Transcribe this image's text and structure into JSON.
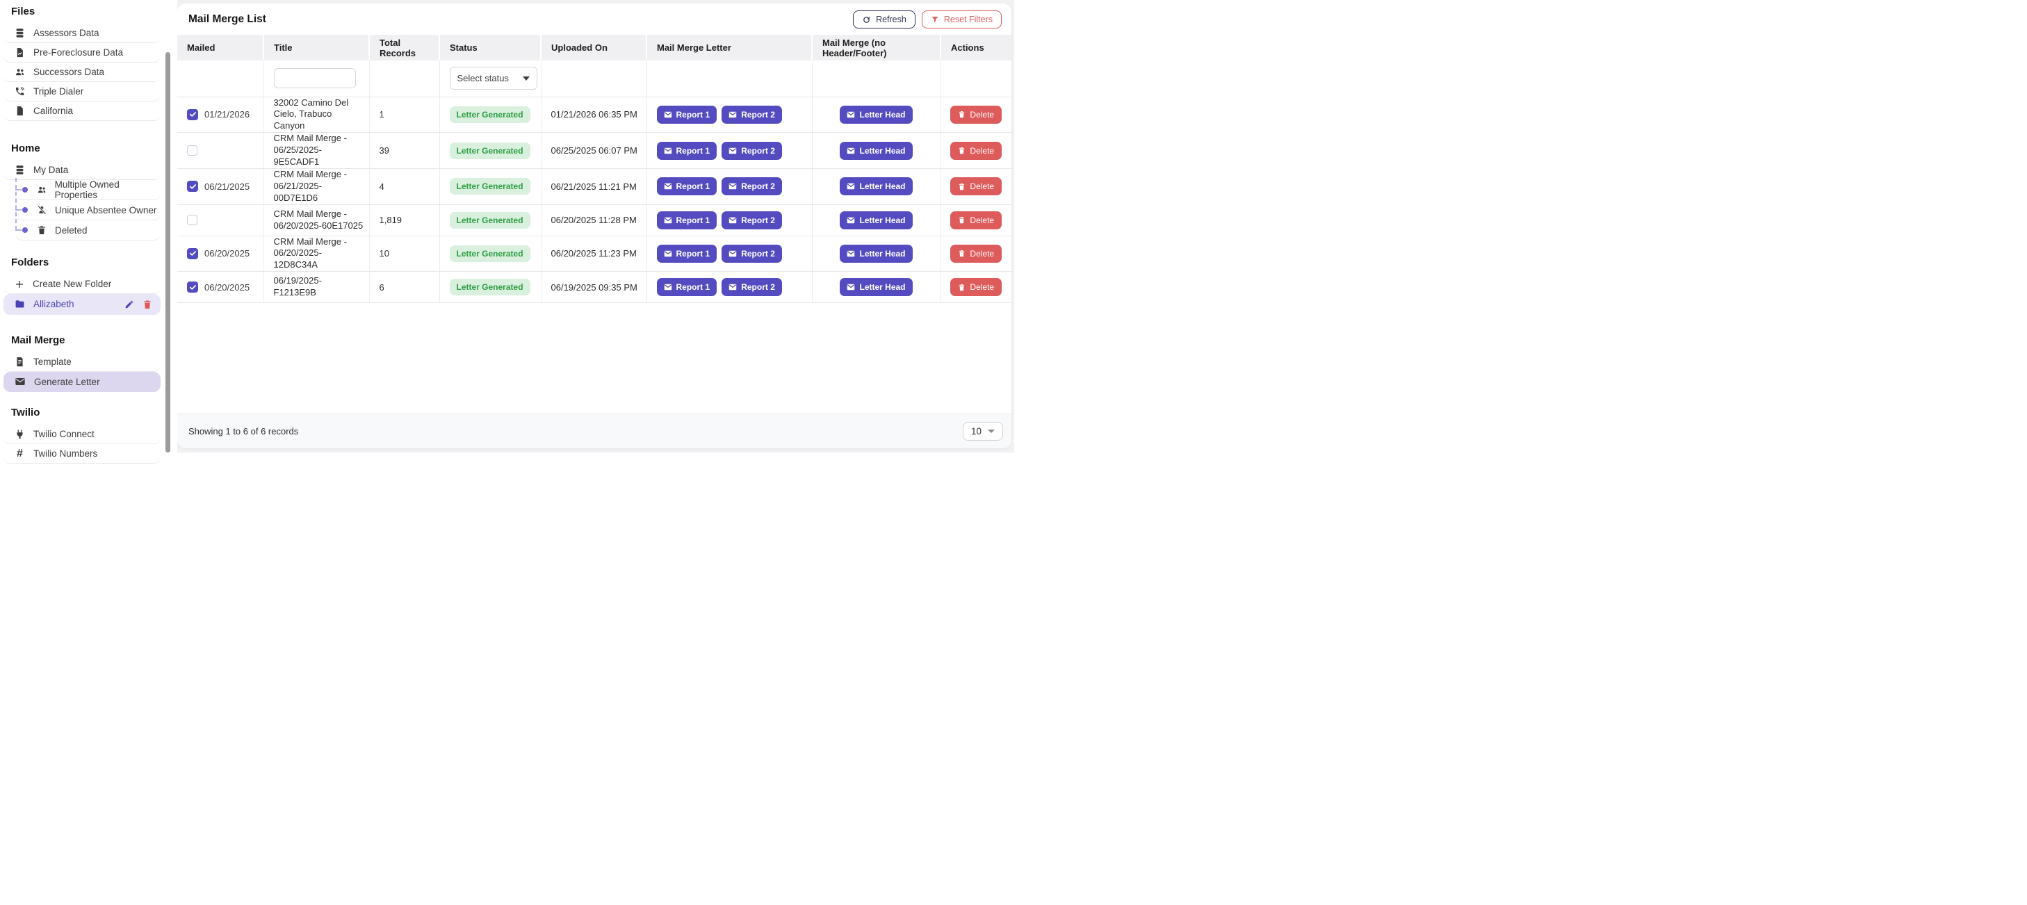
{
  "colors": {
    "accent_purple": "#544bc0",
    "folder_purple": "#4b41b5",
    "selected_item_bg": "#dcd6ee",
    "folder_item_bg": "#e9e6f8",
    "accent_red": "#dd5b5b",
    "badge_green_text": "#2f9e44",
    "badge_green_bg": "#d9f0de",
    "navy": "#2e3356",
    "header_bg": "#f0f0f2"
  },
  "sidebar": {
    "files": {
      "heading": "Files",
      "items": [
        {
          "label": "Assessors Data",
          "icon": "database-icon"
        },
        {
          "label": "Pre-Foreclosure Data",
          "icon": "file-chart-icon"
        },
        {
          "label": "Successors Data",
          "icon": "users-icon"
        },
        {
          "label": "Triple Dialer",
          "icon": "phone-icon"
        },
        {
          "label": "California",
          "icon": "file-icon"
        }
      ]
    },
    "home": {
      "heading": "Home",
      "my_data": {
        "label": "My Data",
        "icon": "database-icon"
      },
      "children": [
        {
          "label": "Multiple Owned Properties",
          "icon": "users-icon"
        },
        {
          "label": "Unique Absentee Owner",
          "icon": "person-slash-icon"
        },
        {
          "label": "Deleted",
          "icon": "trash-icon"
        }
      ]
    },
    "folders": {
      "heading": "Folders",
      "create_label": "Create New Folder",
      "create_icon": "plus-icon",
      "folder_name": "Allizabeth",
      "folder_icon": "folder-icon",
      "folder_action_icons": [
        "pencil-icon",
        "trash-icon"
      ]
    },
    "mail_merge": {
      "heading": "Mail Merge",
      "template_label": "Template",
      "template_icon": "document-icon",
      "generate_letter_label": "Generate Letter",
      "generate_letter_icon": "envelope-icon"
    },
    "twilio": {
      "heading": "Twilio",
      "connect_label": "Twilio Connect",
      "connect_icon": "plug-icon",
      "numbers_label": "Twilio Numbers",
      "numbers_icon": "hash-icon"
    }
  },
  "main": {
    "title": "Mail Merge List",
    "toolbar": {
      "refresh": "Refresh",
      "refresh_icon": "refresh-icon",
      "reset_filters": "Reset Filters",
      "reset_icon": "funnel-icon"
    },
    "filters": {
      "title_value": "",
      "status_select": "Select status"
    },
    "table": {
      "headers": [
        "Mailed",
        "Title",
        "Total Records",
        "Status",
        "Uploaded On",
        "Mail Merge Letter",
        "Mail Merge (no Header/Footer)",
        "Actions"
      ]
    },
    "rows": [
      {
        "mailed": true,
        "mailed_date": "01/21/2026",
        "title": "32002 Camino Del Cielo, Trabuco Canyon",
        "total_records": "1",
        "status": "Letter Generated",
        "uploaded_on": "01/21/2026 06:35 PM"
      },
      {
        "mailed": false,
        "mailed_date": "",
        "title": "CRM Mail Merge - 06/25/2025-9E5CADF1",
        "total_records": "39",
        "status": "Letter Generated",
        "uploaded_on": "06/25/2025 06:07 PM"
      },
      {
        "mailed": true,
        "mailed_date": "06/21/2025",
        "title": "CRM Mail Merge - 06/21/2025-00D7E1D6",
        "total_records": "4",
        "status": "Letter Generated",
        "uploaded_on": "06/21/2025 11:21 PM"
      },
      {
        "mailed": false,
        "mailed_date": "",
        "title": "CRM Mail Merge - 06/20/2025-60E17025",
        "total_records": "1,819",
        "status": "Letter Generated",
        "uploaded_on": "06/20/2025 11:28 PM"
      },
      {
        "mailed": true,
        "mailed_date": "06/20/2025",
        "title": "CRM Mail Merge - 06/20/2025-12D8C34A",
        "total_records": "10",
        "status": "Letter Generated",
        "uploaded_on": "06/20/2025 11:23 PM"
      },
      {
        "mailed": true,
        "mailed_date": "06/20/2025",
        "title": "06/19/2025-F1213E9B",
        "total_records": "6",
        "status": "Letter Generated",
        "uploaded_on": "06/19/2025 09:35 PM"
      }
    ],
    "row_buttons": {
      "report1": "Report 1",
      "report2": "Report 2",
      "letter_head": "Letter Head",
      "delete": "Delete",
      "mail_icon": "envelope-icon",
      "delete_icon": "trash-icon"
    },
    "footer": {
      "summary": "Showing 1 to 6 of 6 records",
      "page_size": "10"
    }
  }
}
